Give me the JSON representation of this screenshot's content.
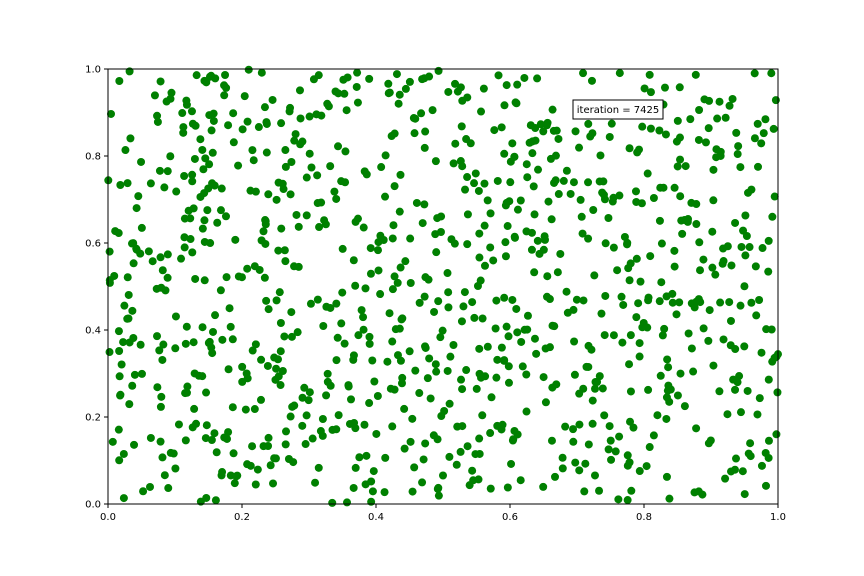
{
  "chart_data": {
    "type": "scatter",
    "title": "",
    "xlabel": "",
    "ylabel": "",
    "xlim": [
      0.0,
      1.0
    ],
    "ylim": [
      0.0,
      1.0
    ],
    "x_ticks": [
      "0.0",
      "0.2",
      "0.4",
      "0.6",
      "0.8",
      "1.0"
    ],
    "y_ticks": [
      "0.0",
      "0.2",
      "0.4",
      "0.6",
      "0.8",
      "1.0"
    ],
    "grid": false,
    "legend": "none",
    "marker_color": "#008000",
    "annotation": "iteration = 7425",
    "points": [],
    "point_count": 1000,
    "point_seed": 7425
  }
}
